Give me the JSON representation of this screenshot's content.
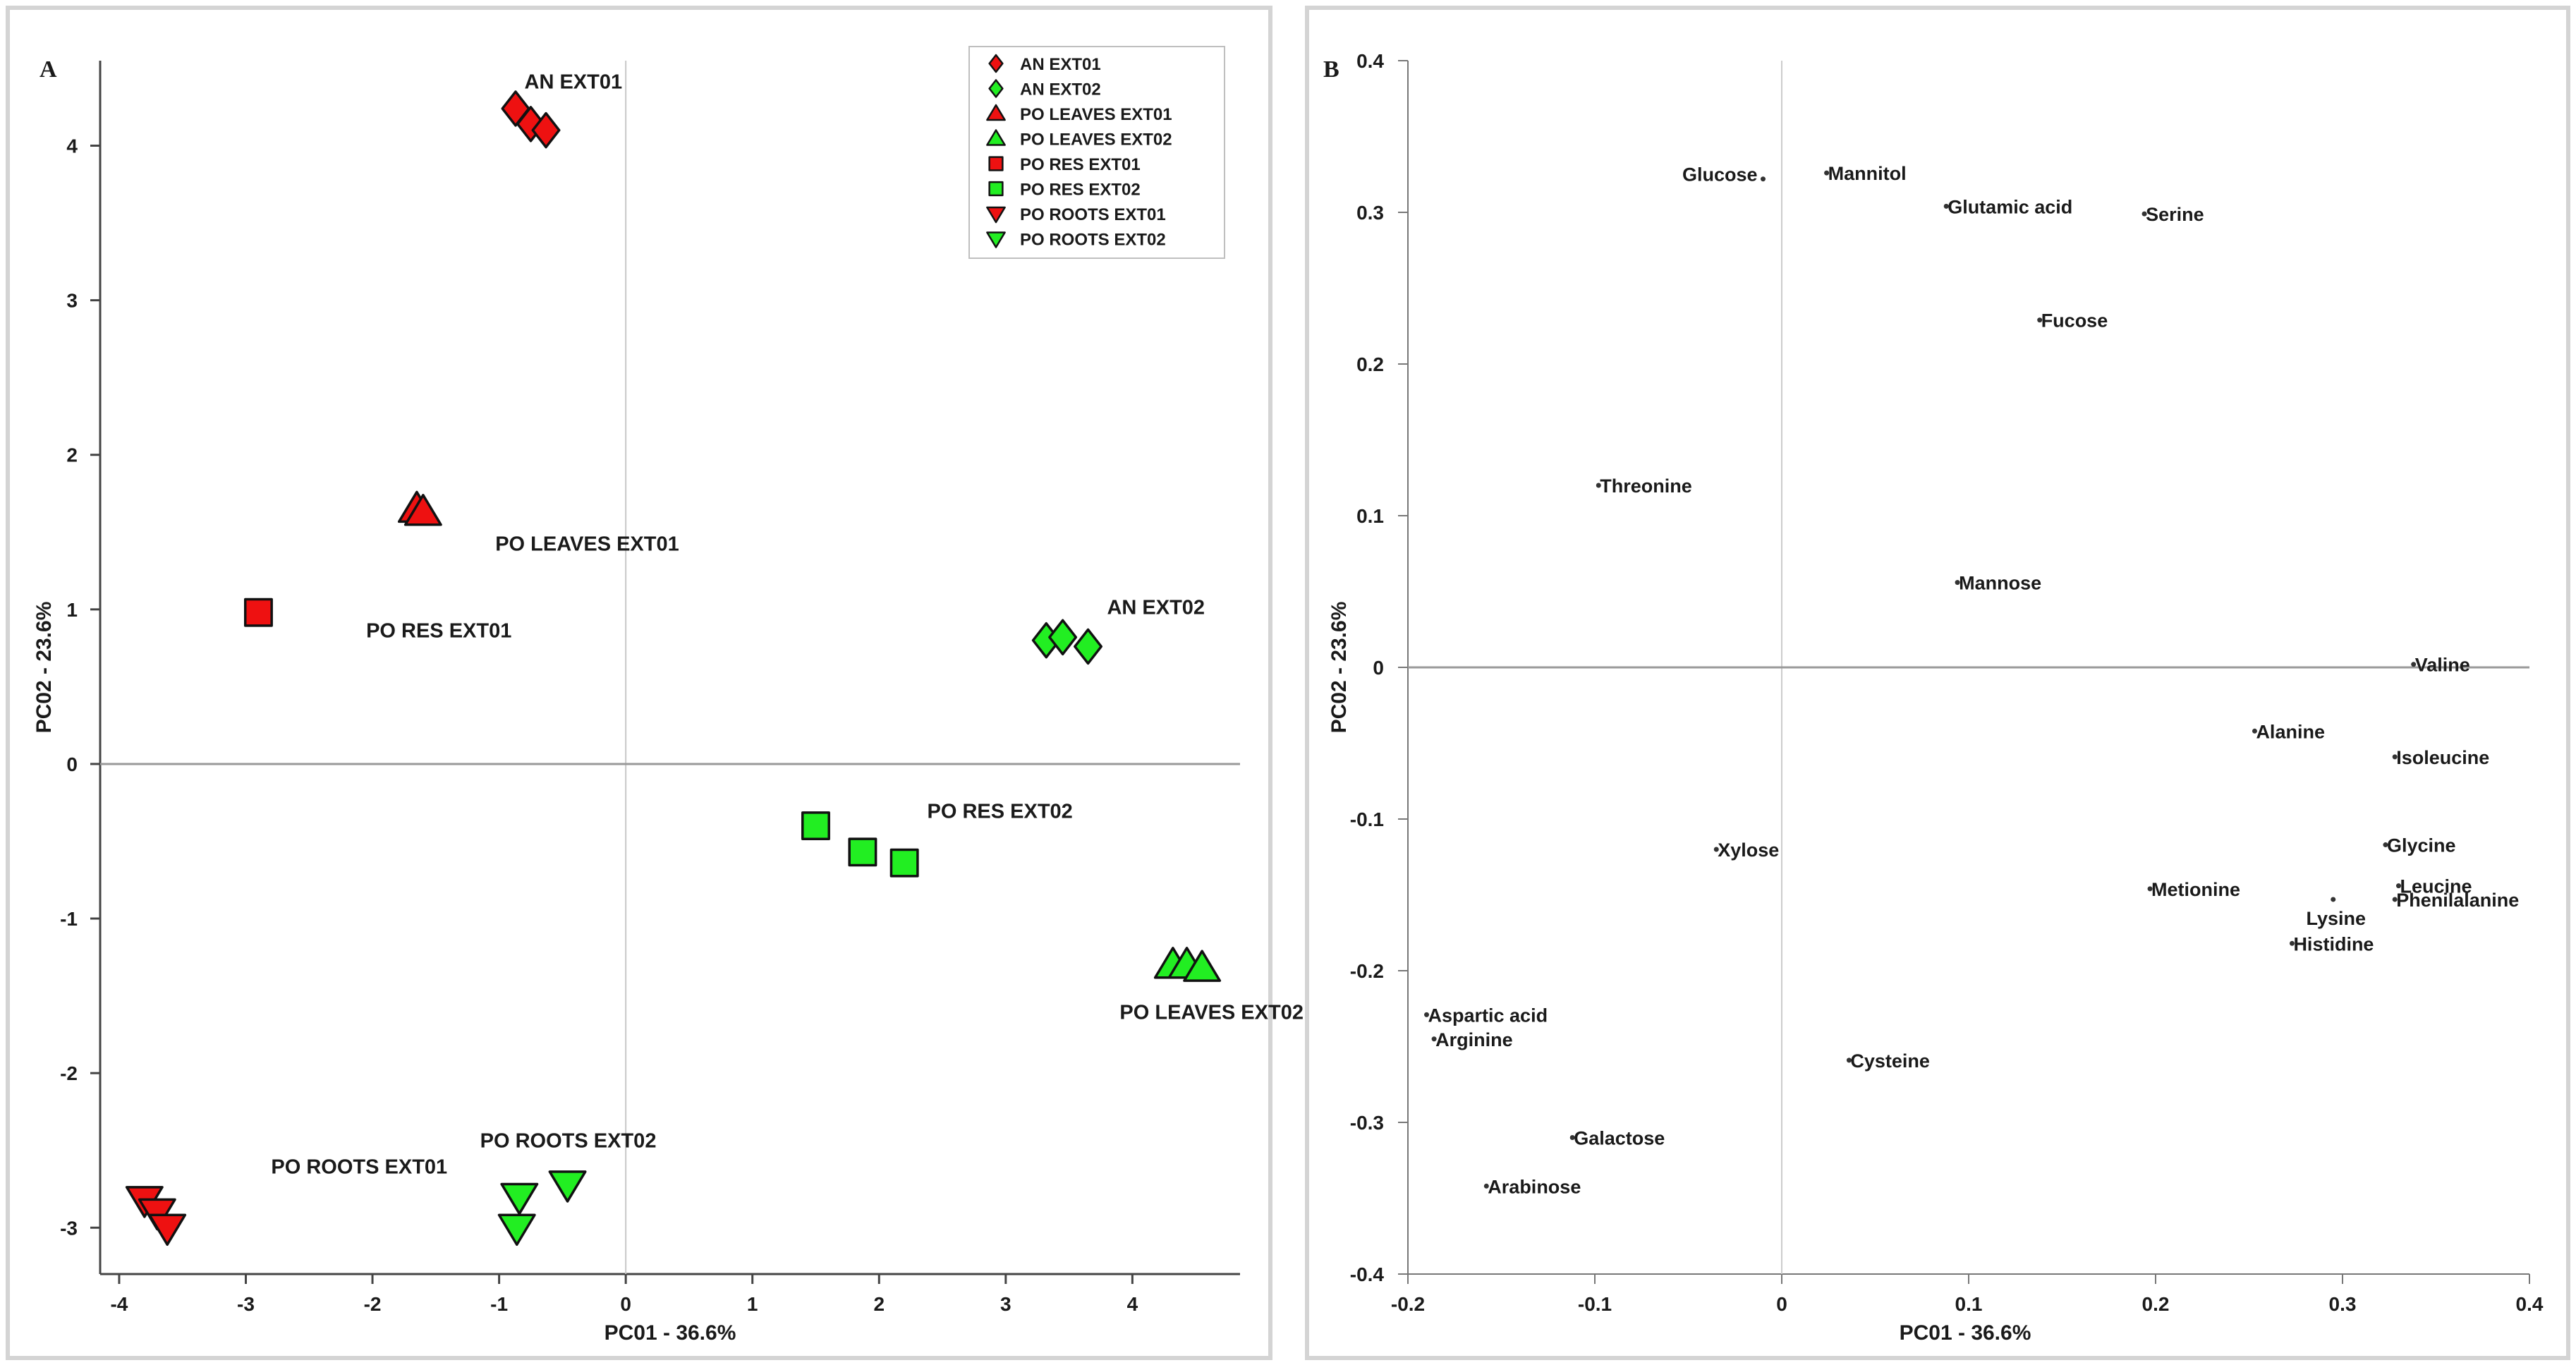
{
  "colors": {
    "red": "#ee1111",
    "green": "#22ee22",
    "axis": "#999999",
    "text": "#1a1a1a"
  },
  "chart_data": [
    {
      "panel": "A",
      "type": "scatter",
      "xlabel": "PC01 - 36.6%",
      "ylabel": "PC02 - 23.6%",
      "xlim": [
        -4.15,
        4.85
      ],
      "ylim": [
        -3.3,
        4.55
      ],
      "xticks": [
        "-4",
        "-3",
        "-2",
        "-1",
        "0",
        "1",
        "2",
        "3",
        "4"
      ],
      "yticks": [
        "-3",
        "-2",
        "-1",
        "0",
        "1",
        "2",
        "3",
        "4"
      ],
      "legend_position": "top-right",
      "series": [
        {
          "name": "AN EXT01",
          "marker": "diamond",
          "color": "red",
          "points": [
            [
              -0.87,
              4.24
            ],
            [
              -0.75,
              4.14
            ],
            [
              -0.63,
              4.1
            ]
          ],
          "label": "AN EXT01",
          "label_at": [
            -0.8,
            4.37
          ]
        },
        {
          "name": "AN EXT02",
          "marker": "diamond",
          "color": "green",
          "points": [
            [
              3.32,
              0.8
            ],
            [
              3.45,
              0.82
            ],
            [
              3.65,
              0.76
            ]
          ],
          "label": "AN EXT02",
          "label_at": [
            3.8,
            0.97
          ]
        },
        {
          "name": "PO LEAVES EXT01",
          "marker": "triangle-up",
          "color": "red",
          "points": [
            [
              -1.65,
              1.65
            ],
            [
              -1.6,
              1.63
            ]
          ],
          "label": "PO LEAVES EXT01",
          "label_at": [
            -1.03,
            1.38
          ]
        },
        {
          "name": "PO LEAVES EXT02",
          "marker": "triangle-up",
          "color": "green",
          "points": [
            [
              4.32,
              -1.3
            ],
            [
              4.43,
              -1.3
            ],
            [
              4.55,
              -1.32
            ]
          ],
          "label": "PO LEAVES EXT02",
          "label_at": [
            3.9,
            -1.65
          ]
        },
        {
          "name": "PO RES EXT01",
          "marker": "square",
          "color": "red",
          "points": [
            [
              -2.9,
              0.98
            ]
          ],
          "label": "PO RES EXT01",
          "label_at": [
            -2.05,
            0.82
          ]
        },
        {
          "name": "PO RES EXT02",
          "marker": "square",
          "color": "green",
          "points": [
            [
              1.5,
              -0.4
            ],
            [
              1.87,
              -0.57
            ],
            [
              2.2,
              -0.64
            ]
          ],
          "label": "PO RES EXT02",
          "label_at": [
            2.38,
            -0.35
          ]
        },
        {
          "name": "PO ROOTS EXT01",
          "marker": "triangle-down",
          "color": "red",
          "points": [
            [
              -3.8,
              -2.82
            ],
            [
              -3.7,
              -2.9
            ],
            [
              -3.62,
              -3.0
            ]
          ],
          "label": "PO ROOTS EXT01",
          "label_at": [
            -2.8,
            -2.65
          ]
        },
        {
          "name": "PO ROOTS EXT02",
          "marker": "triangle-down",
          "color": "green",
          "points": [
            [
              -0.84,
              -2.8
            ],
            [
              -0.86,
              -3.0
            ],
            [
              -0.46,
              -2.72
            ]
          ],
          "label": "PO ROOTS EXT02",
          "label_at": [
            -1.15,
            -2.48
          ]
        }
      ]
    },
    {
      "panel": "B",
      "type": "scatter",
      "xlabel": "PC01 - 36.6%",
      "ylabel": "PC02 - 23.6%",
      "xlim": [
        -0.2,
        0.4
      ],
      "ylim": [
        -0.4,
        0.4
      ],
      "xticks": [
        "-0.2",
        "-0.1",
        "0",
        "0.1",
        "0.2",
        "0.3",
        "0.4"
      ],
      "yticks": [
        "-0.4",
        "-0.3",
        "-0.2",
        "-0.1",
        "0",
        "0.1",
        "0.2",
        "0.3",
        "0.4"
      ],
      "points": [
        {
          "name": "Glucose",
          "x": -0.01,
          "y": 0.322,
          "label_side": "left"
        },
        {
          "name": "Mannitol",
          "x": 0.024,
          "y": 0.326,
          "label_side": "right"
        },
        {
          "name": "Glutamic acid",
          "x": 0.088,
          "y": 0.304,
          "label_side": "right"
        },
        {
          "name": "Serine",
          "x": 0.194,
          "y": 0.299,
          "label_side": "right"
        },
        {
          "name": "Fucose",
          "x": 0.138,
          "y": 0.229,
          "label_side": "right"
        },
        {
          "name": "Threonine",
          "x": -0.098,
          "y": 0.12,
          "label_side": "right"
        },
        {
          "name": "Mannose",
          "x": 0.094,
          "y": 0.056,
          "label_side": "right"
        },
        {
          "name": "Valine",
          "x": 0.338,
          "y": 0.002,
          "label_side": "right"
        },
        {
          "name": "Alanine",
          "x": 0.253,
          "y": -0.042,
          "label_side": "right"
        },
        {
          "name": "Isoleucine",
          "x": 0.328,
          "y": -0.059,
          "label_side": "right"
        },
        {
          "name": "Glycine",
          "x": 0.323,
          "y": -0.117,
          "label_side": "right"
        },
        {
          "name": "Leucine",
          "x": 0.33,
          "y": -0.144,
          "label_side": "right"
        },
        {
          "name": "Phenilalanine",
          "x": 0.328,
          "y": -0.153,
          "label_side": "right"
        },
        {
          "name": "Metionine",
          "x": 0.197,
          "y": -0.146,
          "label_side": "right"
        },
        {
          "name": "Lysine",
          "x": 0.295,
          "y": -0.153,
          "label_side": "below"
        },
        {
          "name": "Histidine",
          "x": 0.273,
          "y": -0.182,
          "label_side": "right"
        },
        {
          "name": "Xylose",
          "x": -0.035,
          "y": -0.12,
          "label_side": "right"
        },
        {
          "name": "Aspartic acid",
          "x": -0.19,
          "y": -0.229,
          "label_side": "right"
        },
        {
          "name": "Arginine",
          "x": -0.186,
          "y": -0.245,
          "label_side": "right"
        },
        {
          "name": "Cysteine",
          "x": 0.036,
          "y": -0.259,
          "label_side": "right"
        },
        {
          "name": "Galactose",
          "x": -0.112,
          "y": -0.31,
          "label_side": "right"
        },
        {
          "name": "Arabinose",
          "x": -0.158,
          "y": -0.342,
          "label_side": "right"
        }
      ]
    }
  ]
}
